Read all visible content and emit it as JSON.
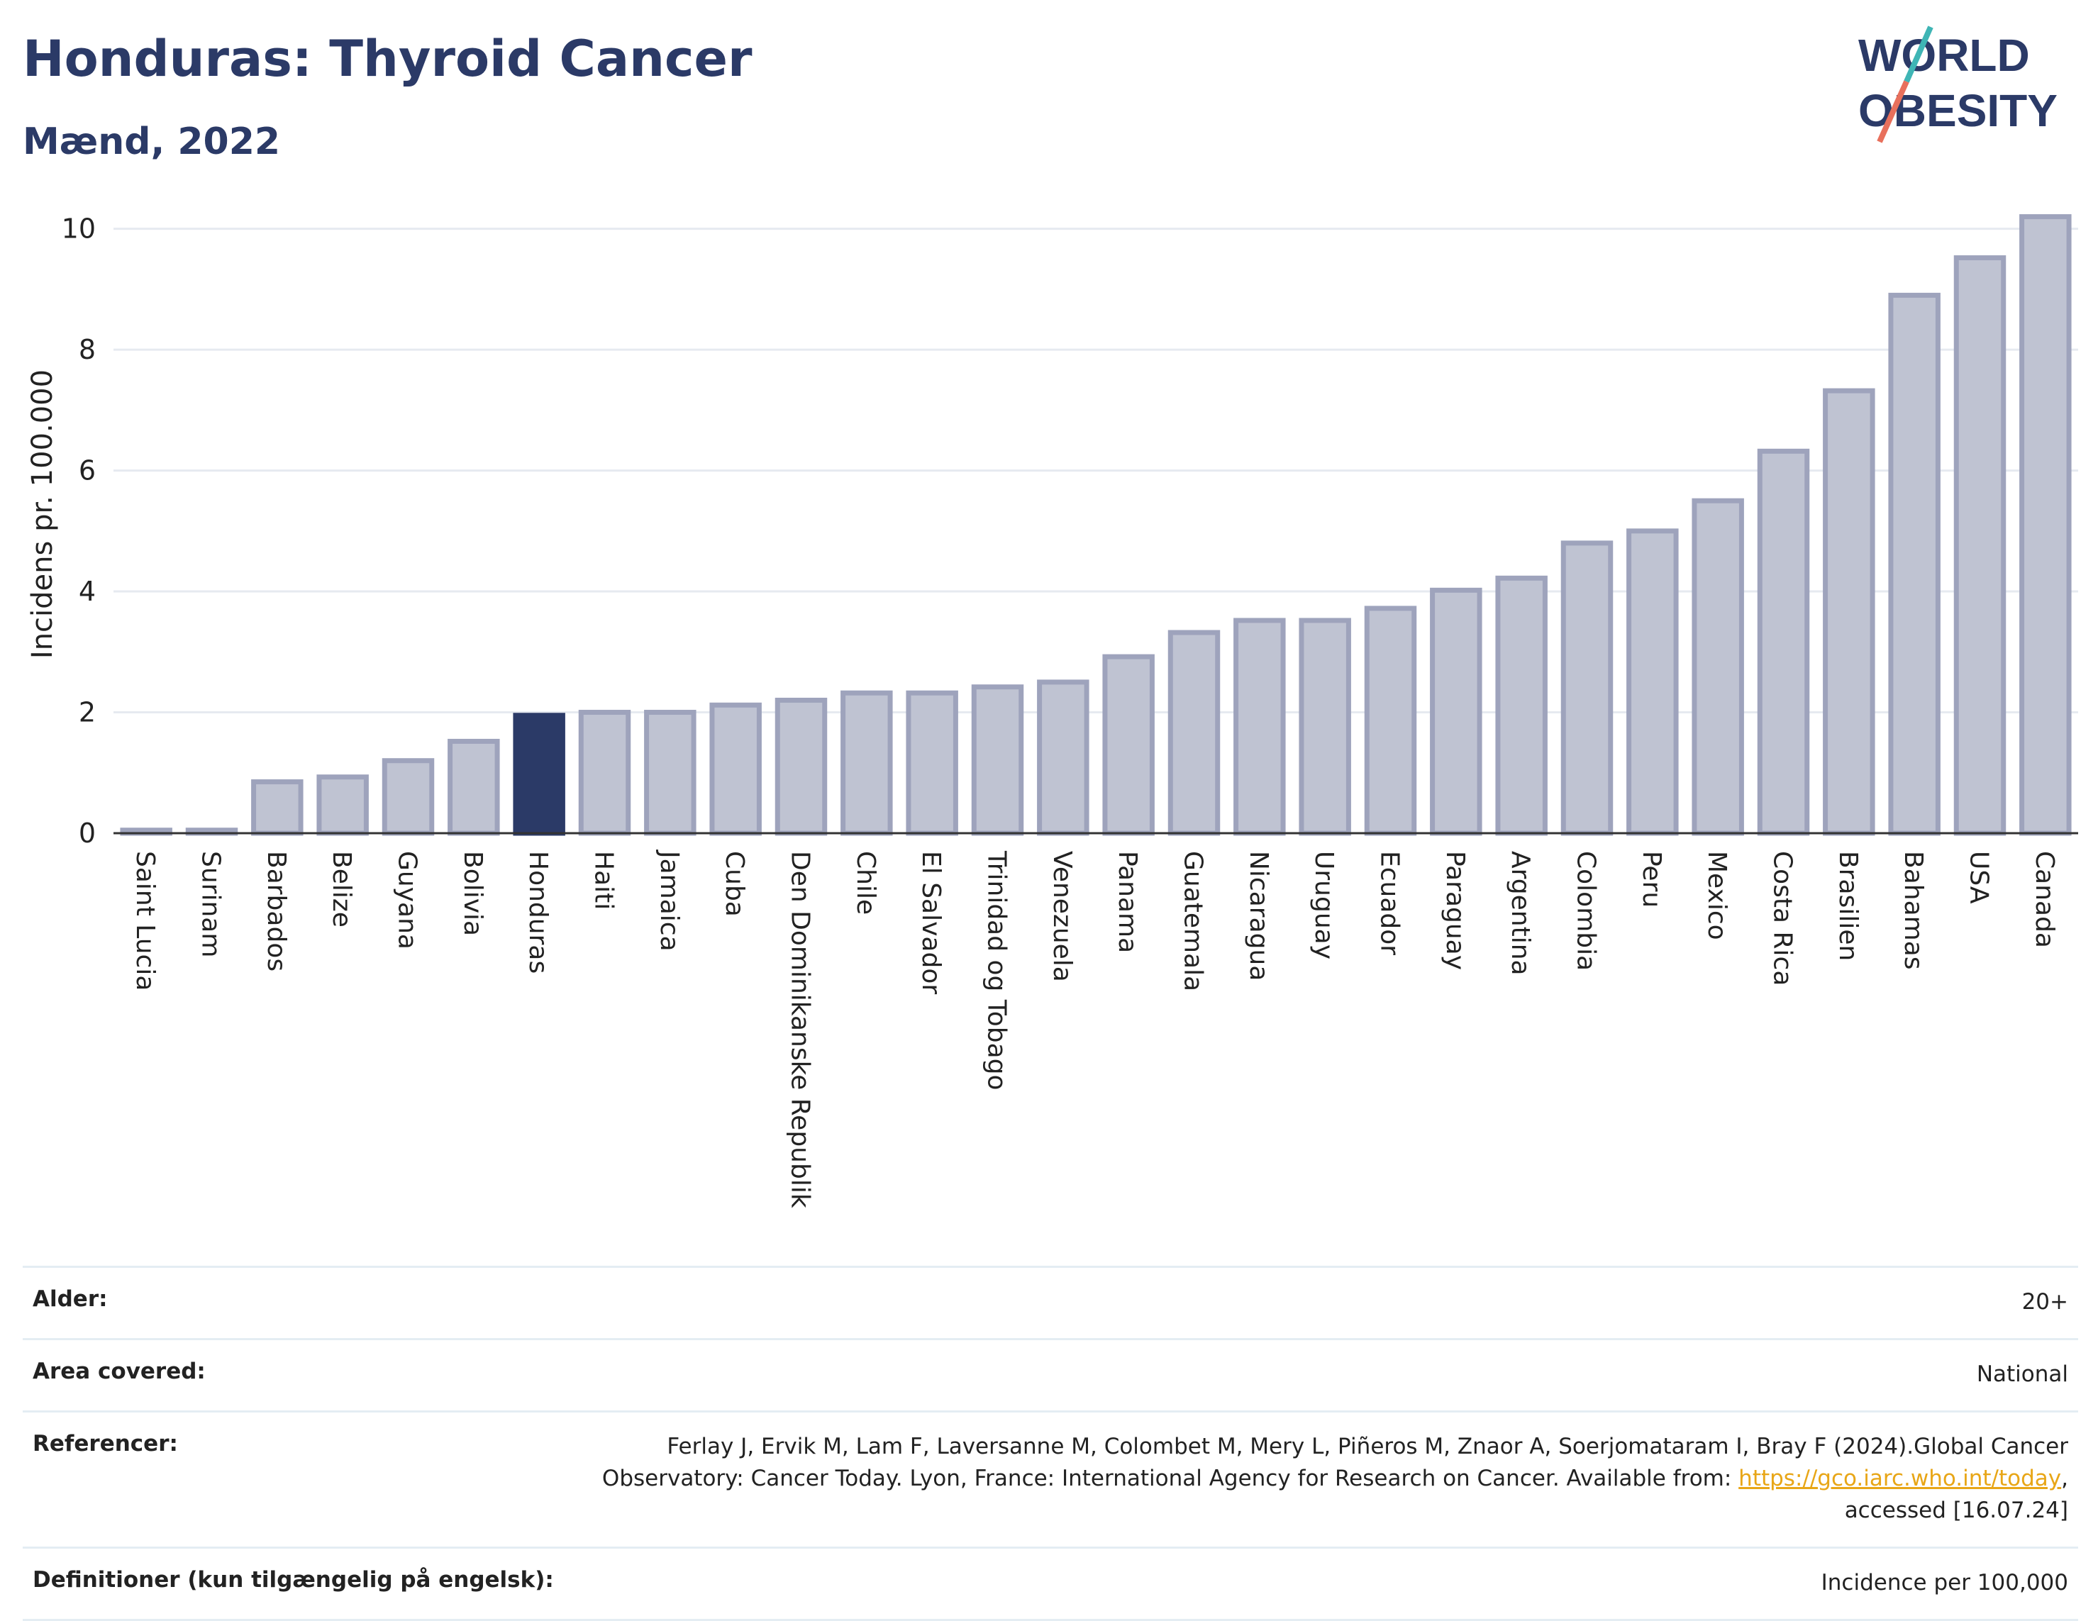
{
  "header": {
    "title": "Honduras: Thyroid Cancer",
    "subtitle": "Mænd, 2022"
  },
  "logo": {
    "line1": "WORLD",
    "line2": "OBESITY",
    "colors": {
      "text": "#2b3a67",
      "stroke_teal": "#3fb5b5",
      "stroke_coral": "#e8705c"
    }
  },
  "chart_data": {
    "type": "bar",
    "ylabel": "Incidens pr. 100.000",
    "xlabel": "",
    "ylim": [
      0,
      10.5
    ],
    "yticks": [
      0,
      2,
      4,
      6,
      8,
      10
    ],
    "grid": true,
    "highlight": "Honduras",
    "colors": {
      "bar": "#bfc3d2",
      "bar_border": "#9ea3bc",
      "highlight": "#2b3a67",
      "grid": "#e6eaf0",
      "axis": "#333333"
    },
    "categories": [
      "Saint Lucia",
      "Surinam",
      "Barbados",
      "Belize",
      "Guyana",
      "Bolivia",
      "Honduras",
      "Haiti",
      "Jamaica",
      "Cuba",
      "Den Dominikanske Republik",
      "Chile",
      "El Salvador",
      "Trinidad og Tobago",
      "Venezuela",
      "Panama",
      "Guatemala",
      "Nicaragua",
      "Uruguay",
      "Ecuador",
      "Paraguay",
      "Argentina",
      "Colombia",
      "Peru",
      "Mexico",
      "Costa Rica",
      "Brasilien",
      "Bahamas",
      "USA",
      "Canada"
    ],
    "values": [
      0.05,
      0.05,
      0.85,
      0.93,
      1.2,
      1.52,
      1.95,
      2.0,
      2.0,
      2.12,
      2.2,
      2.32,
      2.32,
      2.42,
      2.5,
      2.92,
      3.32,
      3.52,
      3.52,
      3.72,
      4.02,
      4.22,
      4.8,
      5.0,
      5.5,
      6.32,
      7.32,
      8.9,
      9.52,
      10.2
    ]
  },
  "meta": {
    "rows": [
      {
        "label": "Alder:",
        "value": "20+"
      },
      {
        "label": "Area covered:",
        "value": "National"
      },
      {
        "label": "Referencer:",
        "value_before": "Ferlay J, Ervik M, Lam F, Laversanne M, Colombet M, Mery L, Piñeros M, Znaor A, Soerjomataram I, Bray F (2024).Global Cancer Observatory: Cancer Today. Lyon, France: International Agency for Research on Cancer. Available from: ",
        "link": "https://gco.iarc.who.int/today",
        "value_after": ", accessed [16.07.24]"
      },
      {
        "label": "Definitioner (kun tilgængelig på engelsk):",
        "value": "Incidence per 100,000"
      }
    ]
  }
}
